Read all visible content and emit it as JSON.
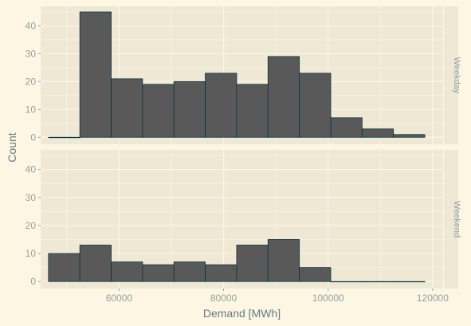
{
  "chart_data": {
    "type": "bar",
    "subtype": "faceted-histogram",
    "xlabel": "Demand [MWh]",
    "ylabel": "Count",
    "xlim": [
      45000,
      122000
    ],
    "ylim": [
      -2.5,
      47
    ],
    "x_ticks": [
      {
        "value": 60000,
        "label": "60000"
      },
      {
        "value": 80000,
        "label": "80000"
      },
      {
        "value": 100000,
        "label": "100000"
      },
      {
        "value": 120000,
        "label": "120000"
      }
    ],
    "y_ticks": [
      {
        "value": 0,
        "label": "0"
      },
      {
        "value": 10,
        "label": "10"
      },
      {
        "value": 20,
        "label": "20"
      },
      {
        "value": 30,
        "label": "30"
      },
      {
        "value": 40,
        "label": "40"
      }
    ],
    "bin_edges": [
      46500,
      52500,
      58500,
      64500,
      70500,
      76500,
      82500,
      88500,
      94500,
      100500,
      106500,
      112500,
      118500
    ],
    "bin_edges_end": 120000,
    "bin_edges_note": "",
    "facets": [
      {
        "name": "Weekday",
        "counts": [
          0,
          45,
          21,
          19,
          20,
          23,
          19,
          29,
          23,
          7,
          3,
          1
        ]
      },
      {
        "name": "Weekend",
        "counts": [
          10,
          13,
          7,
          6,
          7,
          6,
          13,
          15,
          5,
          0,
          0,
          0
        ]
      }
    ],
    "colors": {
      "background": "#fdf6e3",
      "panel": "#eee8d5",
      "grid": "#fdf6e3",
      "bar_fill": "#595959",
      "bar_stroke": "#073642",
      "text": "#93a1a1",
      "axis_title": "#657b83"
    },
    "grid": true
  }
}
